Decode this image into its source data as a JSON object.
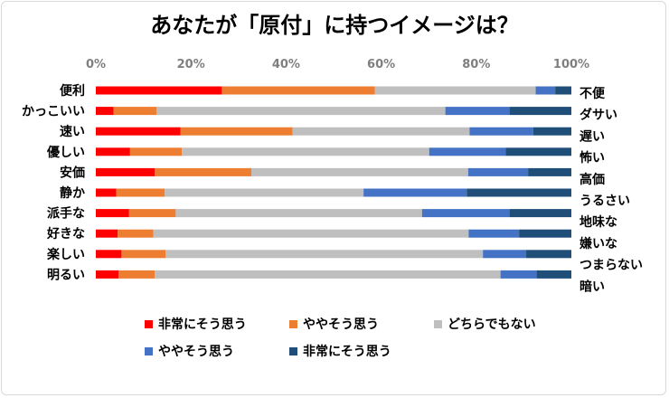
{
  "chart_data": {
    "type": "bar",
    "orientation": "horizontal",
    "stacked": "percent",
    "title": "あなたが「原付」に持つイメージは？",
    "xlim": [
      0,
      100
    ],
    "x_ticks": [
      "0%",
      "20%",
      "40%",
      "60%",
      "80%",
      "100%"
    ],
    "grid": false,
    "legend_position": "bottom",
    "categories_left": [
      "便利",
      "かっこいい",
      "速い",
      "優しい",
      "安価",
      "静か",
      "派手な",
      "好きな",
      "楽しい",
      "明るい"
    ],
    "categories_right": [
      "不便",
      "ダサい",
      "遅い",
      "怖い",
      "高価",
      "うるさい",
      "地味な",
      "嫌いな",
      "つまらない",
      "暗い"
    ],
    "series": [
      {
        "name": "非常にそう思う",
        "color": "#ff0000",
        "values": [
          26.5,
          3.7,
          17.8,
          7.2,
          12.4,
          4.3,
          7.0,
          4.6,
          5.4,
          4.8
        ]
      },
      {
        "name": "ややそう思う",
        "color": "#ed7d31",
        "values": [
          32.2,
          9.1,
          23.6,
          10.9,
          20.3,
          10.2,
          9.8,
          7.5,
          9.3,
          7.6
        ]
      },
      {
        "name": "どちらでもない",
        "color": "#bfbfbf",
        "values": [
          33.8,
          60.7,
          37.2,
          52.0,
          45.6,
          41.8,
          51.8,
          66.3,
          66.7,
          72.7
        ]
      },
      {
        "name": "ややそう思う",
        "color": "#4472c4",
        "values": [
          4.1,
          13.5,
          13.4,
          16.1,
          12.6,
          21.7,
          18.4,
          10.6,
          9.1,
          7.6
        ]
      },
      {
        "name": "非常にそう思う",
        "color": "#1f4e79",
        "values": [
          3.4,
          13.0,
          8.0,
          13.8,
          9.1,
          22.0,
          13.0,
          11.0,
          9.5,
          7.3
        ]
      }
    ]
  }
}
